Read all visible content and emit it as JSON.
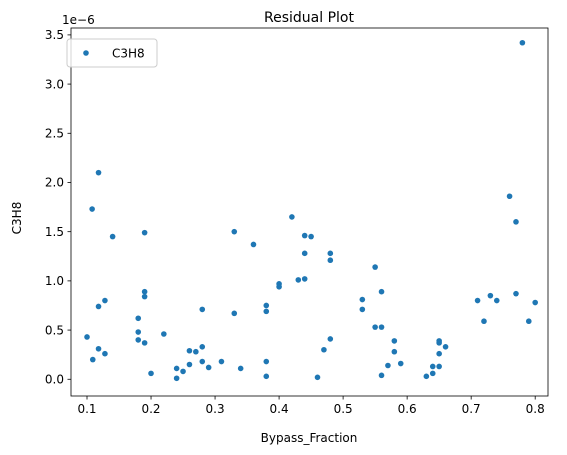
{
  "chart_data": {
    "type": "scatter",
    "title": "Residual Plot",
    "xlabel": "Bypass_Fraction",
    "ylabel": "C3H8",
    "y_scale_label": "1e−6",
    "y_scale_factor": 1e-06,
    "xlim": [
      0.075,
      0.82
    ],
    "ylim": [
      -0.17,
      3.57
    ],
    "xticks": [
      0.1,
      0.2,
      0.3,
      0.4,
      0.5,
      0.6,
      0.7,
      0.8
    ],
    "xtick_labels": [
      "0.1",
      "0.2",
      "0.3",
      "0.4",
      "0.5",
      "0.6",
      "0.7",
      "0.8"
    ],
    "yticks": [
      0.0,
      0.5,
      1.0,
      1.5,
      2.0,
      2.5,
      3.0,
      3.5
    ],
    "ytick_labels": [
      "0.0",
      "0.5",
      "1.0",
      "1.5",
      "2.0",
      "2.5",
      "3.0",
      "3.5"
    ],
    "grid": false,
    "legend_position": "top-left",
    "color": "#1f77b4",
    "series": [
      {
        "name": "C3H8",
        "points": [
          [
            0.1,
            0.43
          ],
          [
            0.108,
            1.73
          ],
          [
            0.109,
            0.2
          ],
          [
            0.118,
            2.1
          ],
          [
            0.118,
            0.74
          ],
          [
            0.118,
            0.31
          ],
          [
            0.128,
            0.8
          ],
          [
            0.128,
            0.26
          ],
          [
            0.14,
            1.45
          ],
          [
            0.18,
            0.62
          ],
          [
            0.18,
            0.48
          ],
          [
            0.18,
            0.4
          ],
          [
            0.19,
            1.49
          ],
          [
            0.19,
            0.89
          ],
          [
            0.19,
            0.84
          ],
          [
            0.19,
            0.37
          ],
          [
            0.2,
            0.06
          ],
          [
            0.22,
            0.46
          ],
          [
            0.24,
            0.11
          ],
          [
            0.24,
            0.01
          ],
          [
            0.25,
            0.08
          ],
          [
            0.26,
            0.29
          ],
          [
            0.26,
            0.15
          ],
          [
            0.27,
            0.28
          ],
          [
            0.28,
            0.71
          ],
          [
            0.28,
            0.33
          ],
          [
            0.28,
            0.18
          ],
          [
            0.29,
            0.12
          ],
          [
            0.31,
            0.18
          ],
          [
            0.33,
            1.5
          ],
          [
            0.33,
            0.67
          ],
          [
            0.34,
            0.11
          ],
          [
            0.36,
            1.37
          ],
          [
            0.38,
            0.75
          ],
          [
            0.38,
            0.69
          ],
          [
            0.38,
            0.18
          ],
          [
            0.38,
            0.03
          ],
          [
            0.4,
            0.97
          ],
          [
            0.4,
            0.94
          ],
          [
            0.42,
            1.65
          ],
          [
            0.43,
            1.01
          ],
          [
            0.44,
            1.46
          ],
          [
            0.44,
            1.28
          ],
          [
            0.44,
            1.02
          ],
          [
            0.45,
            1.45
          ],
          [
            0.46,
            0.02
          ],
          [
            0.47,
            0.3
          ],
          [
            0.48,
            1.28
          ],
          [
            0.48,
            1.21
          ],
          [
            0.48,
            0.41
          ],
          [
            0.53,
            0.81
          ],
          [
            0.53,
            0.71
          ],
          [
            0.55,
            1.14
          ],
          [
            0.55,
            0.53
          ],
          [
            0.56,
            0.89
          ],
          [
            0.56,
            0.53
          ],
          [
            0.56,
            0.04
          ],
          [
            0.57,
            0.14
          ],
          [
            0.58,
            0.39
          ],
          [
            0.58,
            0.28
          ],
          [
            0.59,
            0.16
          ],
          [
            0.63,
            0.03
          ],
          [
            0.64,
            0.13
          ],
          [
            0.64,
            0.06
          ],
          [
            0.65,
            0.39
          ],
          [
            0.65,
            0.37
          ],
          [
            0.65,
            0.26
          ],
          [
            0.65,
            0.13
          ],
          [
            0.66,
            0.33
          ],
          [
            0.71,
            0.8
          ],
          [
            0.72,
            0.59
          ],
          [
            0.73,
            0.85
          ],
          [
            0.74,
            0.8
          ],
          [
            0.76,
            1.86
          ],
          [
            0.77,
            1.6
          ],
          [
            0.77,
            0.87
          ],
          [
            0.78,
            3.42
          ],
          [
            0.79,
            0.59
          ],
          [
            0.8,
            0.78
          ]
        ]
      }
    ]
  }
}
